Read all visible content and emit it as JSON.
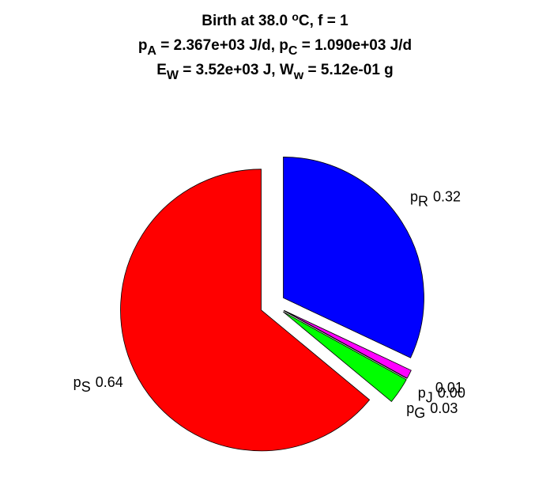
{
  "chart_data": {
    "type": "pie",
    "title": [
      [
        {
          "text": "Birth at 38.0 "
        },
        {
          "text": "o",
          "sup": true
        },
        {
          "text": "C, f = 1"
        }
      ],
      [
        {
          "text": "p"
        },
        {
          "text": "A",
          "sub": true
        },
        {
          "text": " = 2.367e+03 J/d, p"
        },
        {
          "text": "C",
          "sub": true
        },
        {
          "text": " = 1.090e+03 J/d"
        }
      ],
      [
        {
          "text": "E"
        },
        {
          "text": "W",
          "sub": true
        },
        {
          "text": " = 3.52e+03 J, W"
        },
        {
          "text": "w",
          "sub": true
        },
        {
          "text": " = 5.12e-01 g"
        }
      ]
    ],
    "slices": [
      {
        "name": "p",
        "sub": "R",
        "value": 0.32,
        "color": "#0000ff"
      },
      {
        "name": null,
        "sub": null,
        "value": 0.01,
        "color": "#ff00ff"
      },
      {
        "name": "p",
        "sub": "J",
        "value": 0.0,
        "color": "#000000"
      },
      {
        "name": "p",
        "sub": "G",
        "value": 0.03,
        "color": "#00ff00"
      },
      {
        "name": "p",
        "sub": "S",
        "value": 0.64,
        "color": "#ff0000"
      }
    ],
    "explode": true
  }
}
